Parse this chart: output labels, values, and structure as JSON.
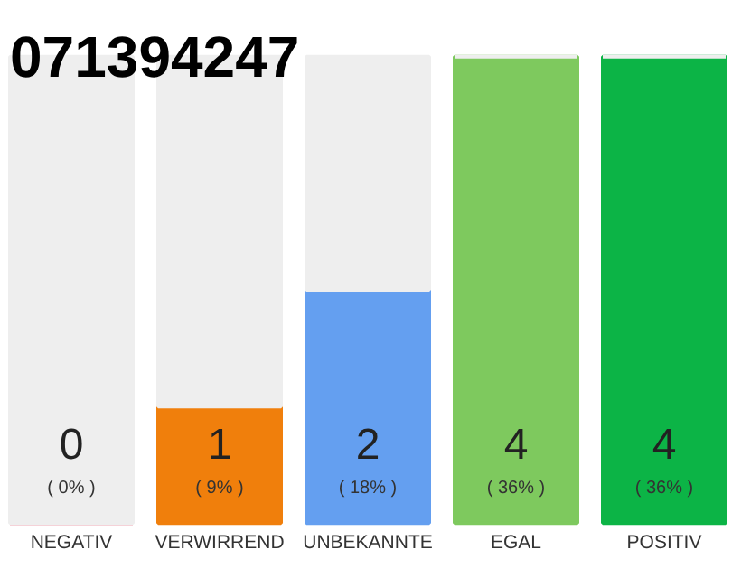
{
  "chart_data": {
    "type": "bar",
    "title": "071394247",
    "stacked": true,
    "grid": false,
    "tick_labels": "x",
    "categories": [
      "NEGATIV",
      "VERWIRREND",
      "UNBEKANNTE",
      "EGAL",
      "POSITIV"
    ],
    "ylim": [
      0,
      4
    ],
    "series": [
      {
        "colors": [
          "#e0284a",
          "#f07f0c",
          "#649ff0",
          "#7ec95e",
          "#0cb446"
        ],
        "values": [
          0,
          1,
          2,
          4,
          4
        ],
        "value_labels": [
          "0",
          "1",
          "2",
          "4",
          "4"
        ]
      },
      {
        "color": "#eeeeee",
        "values": [
          4,
          3,
          2,
          0,
          0
        ],
        "value_labels": [
          null,
          null,
          null,
          null,
          null
        ]
      }
    ],
    "annotations": [
      "( 0% )",
      "( 9% )",
      "( 18% )",
      "( 36% )",
      "( 36% )"
    ]
  }
}
